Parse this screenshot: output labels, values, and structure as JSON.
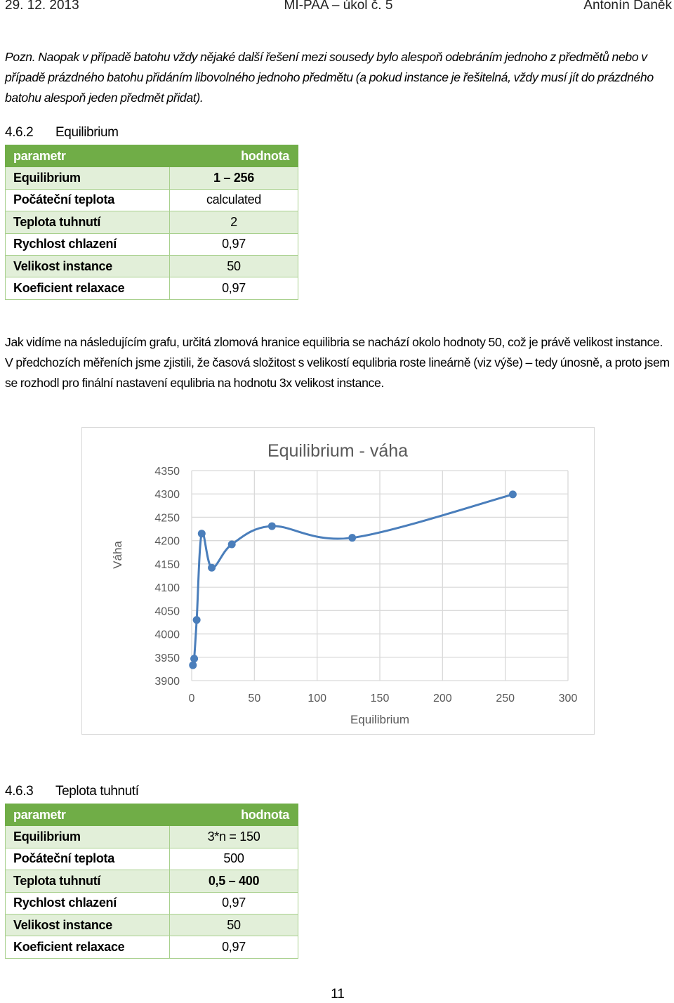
{
  "header": {
    "date": "29. 12. 2013",
    "course": "MI-PAA – úkol č. 5",
    "author": "Antonín Daněk"
  },
  "note": "Pozn. Naopak v případě batohu vždy nějaké další řešení mezi sousedy bylo alespoň odebráním jednoho z předmětů nebo v případě prázdného batohu přidáním libovolného jednoho předmětu (a pokud instance je řešitelná, vždy musí jít do prázdného batohu alespoň jeden předmět přidat).",
  "section1": {
    "number": "4.6.2",
    "title": "Equilibrium"
  },
  "table1": {
    "header": [
      "parametr",
      "hodnota"
    ],
    "rows": [
      [
        "Equilibrium",
        "1 – 256"
      ],
      [
        "Počáteční teplota",
        "calculated"
      ],
      [
        "Teplota tuhnutí",
        "2"
      ],
      [
        "Rychlost chlazení",
        "0,97"
      ],
      [
        "Velikost instance",
        "50"
      ],
      [
        "Koeficient relaxace",
        "0,97"
      ]
    ]
  },
  "paragraph": "Jak vidíme na následujícím grafu, určitá zlomová hranice equilibria se nachází okolo hodnoty 50, což je právě velikost instance. V předchozích měřeních jsme zjistili, že časová složitost s velikostí equlibria roste lineárně (viz výše) – tedy únosně, a proto jsem se rozhodl pro finální nastavení equlibria na hodnotu 3x velikost instance.",
  "chart_data": {
    "type": "line",
    "title": "Equilibrium - váha",
    "x_label": "Equilibrium",
    "y_label": "Váha",
    "x": [
      1,
      2,
      4,
      8,
      16,
      32,
      64,
      128,
      256
    ],
    "values": [
      3933,
      3947,
      4030,
      4215,
      4142,
      4192,
      4231,
      4206,
      4299
    ],
    "color": "#4a7ebb",
    "smooth": true,
    "grid": true,
    "xlim": [
      0,
      300
    ],
    "xticks": [
      0,
      50,
      100,
      150,
      200,
      250,
      300
    ],
    "ylim": [
      3900,
      4350
    ],
    "yticks": [
      3900,
      3950,
      4000,
      4050,
      4100,
      4150,
      4200,
      4250,
      4300,
      4350
    ]
  },
  "section2": {
    "number": "4.6.3",
    "title": "Teplota tuhnutí"
  },
  "table2": {
    "header": [
      "parametr",
      "hodnota"
    ],
    "rows": [
      [
        "Equilibrium",
        "3*n = 150"
      ],
      [
        "Počáteční teplota",
        "500"
      ],
      [
        "Teplota tuhnutí",
        "0,5 – 400"
      ],
      [
        "Rychlost chlazení",
        "0,97"
      ],
      [
        "Velikost instance",
        "50"
      ],
      [
        "Koeficient relaxace",
        "0,97"
      ]
    ]
  },
  "page_number": "11"
}
